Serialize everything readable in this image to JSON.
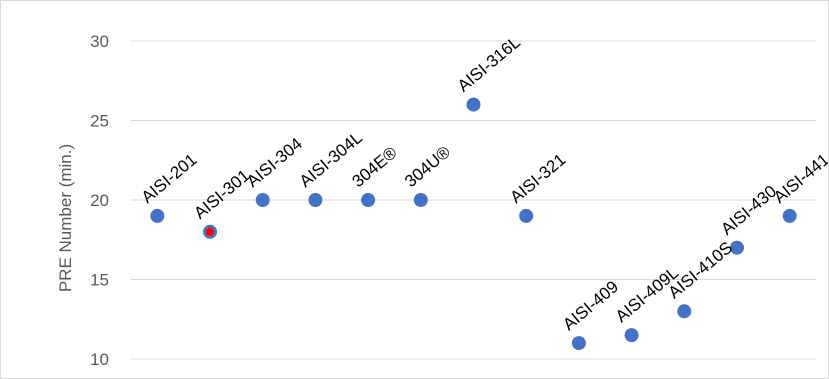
{
  "chart_data": {
    "type": "scatter",
    "title": "",
    "xlabel": "",
    "ylabel": "PRE Number (min.)",
    "ylim": [
      10,
      30
    ],
    "yticks": [
      10,
      15,
      20,
      25,
      30
    ],
    "grid": true,
    "legend": "none",
    "categories": [
      "AISI-201",
      "AISI-301",
      "AISI-304",
      "AISI-304L",
      "304E®",
      "304U®",
      "AISI-316L",
      "AISI-321",
      "AISI-409",
      "AISI-409L",
      "AISI-410S",
      "AISI-430",
      "AISI-441"
    ],
    "values": [
      19,
      18,
      20,
      20,
      20,
      20,
      26,
      19,
      11,
      11.5,
      13,
      17,
      19
    ],
    "highlighted_category": "AISI-301",
    "colors": {
      "marker": "#4472c4",
      "highlight": "#ff0000",
      "grid": "#d9d9d9",
      "tick_text": "#595959",
      "label_text": "#000000"
    }
  }
}
